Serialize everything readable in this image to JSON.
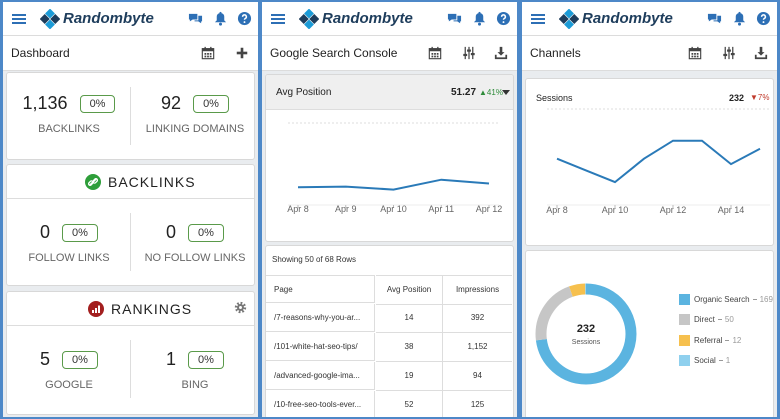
{
  "panels": [
    {
      "logo": "Randombyte",
      "title": "Dashboard",
      "summary": [
        {
          "value": "1,136",
          "change": "0%",
          "label": "BACKLINKS"
        },
        {
          "value": "92",
          "change": "0%",
          "label": "LINKING DOMAINS"
        }
      ],
      "sections": [
        {
          "title": "BACKLINKS",
          "items": [
            {
              "value": "0",
              "change": "0%",
              "label": "FOLLOW LINKS"
            },
            {
              "value": "0",
              "change": "0%",
              "label": "NO FOLLOW LINKS"
            }
          ]
        },
        {
          "title": "RANKINGS",
          "items": [
            {
              "value": "5",
              "change": "0%",
              "label": "GOOGLE"
            },
            {
              "value": "1",
              "change": "0%",
              "label": "BING"
            }
          ]
        }
      ]
    },
    {
      "logo": "Randombyte",
      "title": "Google Search Console",
      "chart": {
        "type": "line",
        "title": "Avg Position",
        "value": 51.27,
        "change": "▲41%",
        "categories": [
          "Apr 8",
          "Apr 9",
          "Apr 10",
          "Apr 11",
          "Apr 12"
        ],
        "values": [
          18,
          19,
          15,
          28,
          23
        ],
        "ylim": [
          0,
          100
        ],
        "color": "#2a7ab8"
      },
      "table": {
        "caption": "Showing 50 of 68 Rows",
        "columns": [
          "Page",
          "Avg Position",
          "Impressions"
        ],
        "rows": [
          [
            "/7-reasons-why-you-ar...",
            "14",
            "392"
          ],
          [
            "/101-white-hat-seo-tips/",
            "38",
            "1,152"
          ],
          [
            "/advanced-google-ima...",
            "19",
            "94"
          ],
          [
            "/10-free-seo-tools-ever...",
            "52",
            "125"
          ]
        ]
      }
    },
    {
      "logo": "Randombyte",
      "title": "Channels",
      "chart": {
        "type": "line",
        "title": "Sessions",
        "value": 232,
        "change": "▼7%",
        "categories": [
          "Apr 8",
          null,
          "Apr 10",
          null,
          "Apr 12",
          null,
          "Apr 14",
          null
        ],
        "values": [
          47,
          34,
          21,
          47,
          67,
          67,
          41,
          58
        ],
        "ylim": [
          0,
          100
        ],
        "color": "#2a7ab8"
      },
      "donut": {
        "type": "pie",
        "total": 232,
        "center_label": "Sessions",
        "categories": [
          "Organic Search",
          "Direct",
          "Referral",
          "Social"
        ],
        "values": [
          169,
          50,
          12,
          1
        ],
        "colors": [
          "#5bb4e0",
          "#c6c6c6",
          "#f6c04e",
          "#8fd0ee"
        ]
      }
    }
  ]
}
